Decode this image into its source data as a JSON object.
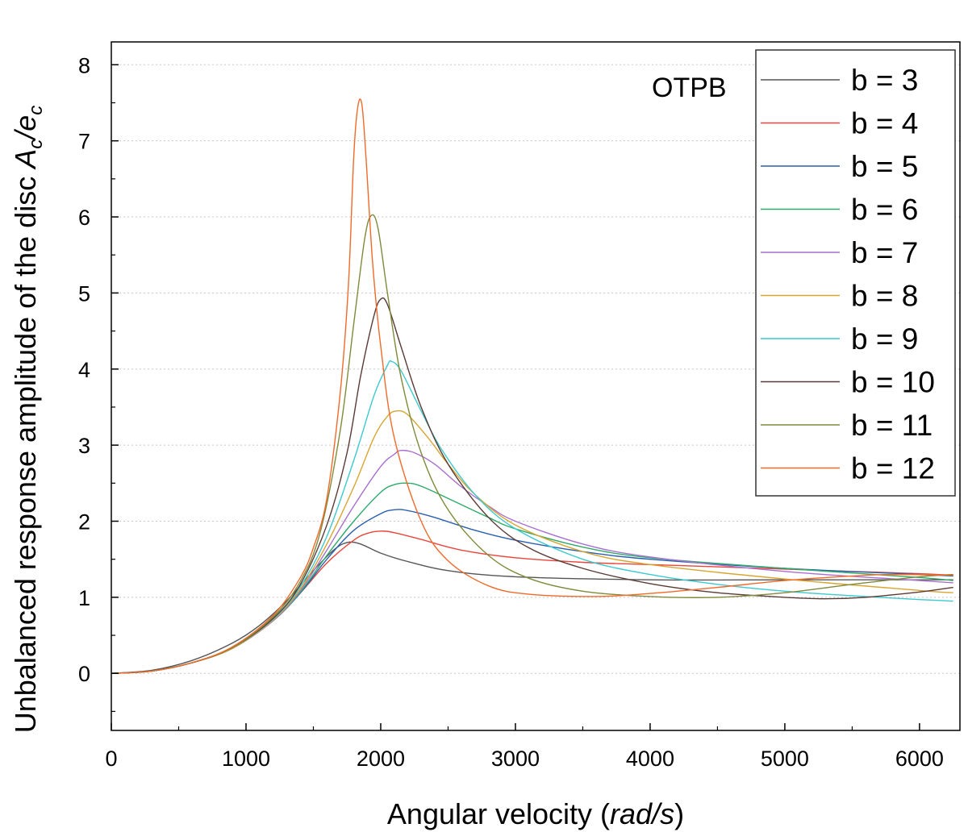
{
  "chart_data": {
    "type": "line",
    "annotation": "OTPB",
    "xlabel_main": "Angular velocity (",
    "xlabel_unit": "rad/s",
    "xlabel_close": ")",
    "ylabel_main": "Unbalanced response amplitude of the disc ",
    "ylabel_A": "A",
    "ylabel_sub1": "c",
    "ylabel_slash": "/e",
    "ylabel_sub2": "c",
    "xlim": [
      0,
      6300
    ],
    "ylim": [
      -0.75,
      8.3
    ],
    "x_ticks": [
      0,
      1000,
      2000,
      3000,
      4000,
      5000,
      6000
    ],
    "x_tick_labels": [
      "0",
      "1000",
      "2000",
      "3000",
      "4000",
      "5000",
      "6000"
    ],
    "y_ticks": [
      0,
      1,
      2,
      3,
      4,
      5,
      6,
      7,
      8
    ],
    "y_tick_labels": [
      "0",
      "1",
      "2",
      "3",
      "4",
      "5",
      "6",
      "7",
      "8"
    ],
    "grid": "horizontal-dotted",
    "legend_position": "top-right",
    "series": [
      {
        "name": "b = 3",
        "color": "#555555",
        "points": [
          [
            0,
            0
          ],
          [
            300,
            0.04
          ],
          [
            600,
            0.17
          ],
          [
            900,
            0.4
          ],
          [
            1100,
            0.63
          ],
          [
            1300,
            0.95
          ],
          [
            1500,
            1.35
          ],
          [
            1650,
            1.62
          ],
          [
            1750,
            1.72
          ],
          [
            1850,
            1.7
          ],
          [
            2000,
            1.58
          ],
          [
            2200,
            1.47
          ],
          [
            2500,
            1.35
          ],
          [
            3000,
            1.27
          ],
          [
            4000,
            1.23
          ],
          [
            5000,
            1.23
          ],
          [
            6000,
            1.23
          ],
          [
            6250,
            1.23
          ]
        ]
      },
      {
        "name": "b = 4",
        "color": "#e8463b",
        "points": [
          [
            0,
            0
          ],
          [
            300,
            0.03
          ],
          [
            600,
            0.14
          ],
          [
            900,
            0.34
          ],
          [
            1200,
            0.7
          ],
          [
            1400,
            1.05
          ],
          [
            1600,
            1.45
          ],
          [
            1800,
            1.75
          ],
          [
            1900,
            1.84
          ],
          [
            2000,
            1.87
          ],
          [
            2100,
            1.85
          ],
          [
            2300,
            1.76
          ],
          [
            2600,
            1.62
          ],
          [
            3000,
            1.52
          ],
          [
            3500,
            1.46
          ],
          [
            4000,
            1.43
          ],
          [
            5000,
            1.37
          ],
          [
            5500,
            1.34
          ],
          [
            6000,
            1.31
          ],
          [
            6250,
            1.29
          ]
        ]
      },
      {
        "name": "b = 5",
        "color": "#2b5fae",
        "points": [
          [
            0,
            0
          ],
          [
            300,
            0.03
          ],
          [
            600,
            0.14
          ],
          [
            900,
            0.33
          ],
          [
            1200,
            0.69
          ],
          [
            1400,
            1.05
          ],
          [
            1600,
            1.5
          ],
          [
            1800,
            1.88
          ],
          [
            2000,
            2.1
          ],
          [
            2100,
            2.15
          ],
          [
            2200,
            2.14
          ],
          [
            2400,
            2.05
          ],
          [
            2700,
            1.88
          ],
          [
            3000,
            1.75
          ],
          [
            3500,
            1.6
          ],
          [
            4000,
            1.5
          ],
          [
            5000,
            1.38
          ],
          [
            6000,
            1.3
          ],
          [
            6250,
            1.28
          ]
        ]
      },
      {
        "name": "b = 6",
        "color": "#2eaa6a",
        "points": [
          [
            0,
            0
          ],
          [
            300,
            0.03
          ],
          [
            600,
            0.14
          ],
          [
            900,
            0.33
          ],
          [
            1200,
            0.69
          ],
          [
            1400,
            1.06
          ],
          [
            1600,
            1.55
          ],
          [
            1800,
            2.0
          ],
          [
            2000,
            2.38
          ],
          [
            2100,
            2.48
          ],
          [
            2200,
            2.5
          ],
          [
            2300,
            2.46
          ],
          [
            2500,
            2.3
          ],
          [
            2800,
            2.05
          ],
          [
            3000,
            1.9
          ],
          [
            3500,
            1.66
          ],
          [
            4000,
            1.52
          ],
          [
            5000,
            1.38
          ],
          [
            6000,
            1.26
          ],
          [
            6250,
            1.22
          ]
        ]
      },
      {
        "name": "b = 7",
        "color": "#a96fcf",
        "points": [
          [
            0,
            0
          ],
          [
            300,
            0.03
          ],
          [
            600,
            0.14
          ],
          [
            900,
            0.33
          ],
          [
            1200,
            0.69
          ],
          [
            1400,
            1.08
          ],
          [
            1600,
            1.62
          ],
          [
            1800,
            2.2
          ],
          [
            2000,
            2.72
          ],
          [
            2100,
            2.88
          ],
          [
            2150,
            2.93
          ],
          [
            2250,
            2.9
          ],
          [
            2400,
            2.75
          ],
          [
            2600,
            2.45
          ],
          [
            2800,
            2.2
          ],
          [
            3000,
            2.0
          ],
          [
            3500,
            1.7
          ],
          [
            4000,
            1.53
          ],
          [
            5000,
            1.34
          ],
          [
            6000,
            1.22
          ],
          [
            6250,
            1.19
          ]
        ]
      },
      {
        "name": "b = 8",
        "color": "#d9a531",
        "points": [
          [
            0,
            0
          ],
          [
            300,
            0.03
          ],
          [
            600,
            0.14
          ],
          [
            900,
            0.33
          ],
          [
            1200,
            0.7
          ],
          [
            1400,
            1.1
          ],
          [
            1600,
            1.7
          ],
          [
            1800,
            2.45
          ],
          [
            1950,
            3.1
          ],
          [
            2050,
            3.38
          ],
          [
            2120,
            3.45
          ],
          [
            2200,
            3.4
          ],
          [
            2350,
            3.1
          ],
          [
            2500,
            2.75
          ],
          [
            2700,
            2.35
          ],
          [
            3000,
            1.95
          ],
          [
            3500,
            1.6
          ],
          [
            4000,
            1.43
          ],
          [
            5000,
            1.24
          ],
          [
            6000,
            1.09
          ],
          [
            6250,
            1.06
          ]
        ]
      },
      {
        "name": "b = 9",
        "color": "#3cc9cf",
        "points": [
          [
            0,
            0
          ],
          [
            300,
            0.03
          ],
          [
            600,
            0.14
          ],
          [
            900,
            0.34
          ],
          [
            1200,
            0.71
          ],
          [
            1400,
            1.13
          ],
          [
            1600,
            1.8
          ],
          [
            1800,
            2.8
          ],
          [
            1950,
            3.65
          ],
          [
            2050,
            4.05
          ],
          [
            2080,
            4.1
          ],
          [
            2150,
            3.98
          ],
          [
            2300,
            3.45
          ],
          [
            2450,
            2.95
          ],
          [
            2700,
            2.35
          ],
          [
            3000,
            1.9
          ],
          [
            3500,
            1.5
          ],
          [
            4000,
            1.3
          ],
          [
            4500,
            1.17
          ],
          [
            5000,
            1.08
          ],
          [
            5500,
            1.02
          ],
          [
            6000,
            0.97
          ],
          [
            6250,
            0.95
          ]
        ]
      },
      {
        "name": "b = 10",
        "color": "#5a3a36",
        "points": [
          [
            0,
            0
          ],
          [
            300,
            0.03
          ],
          [
            600,
            0.14
          ],
          [
            900,
            0.34
          ],
          [
            1200,
            0.72
          ],
          [
            1400,
            1.16
          ],
          [
            1600,
            1.95
          ],
          [
            1750,
            2.9
          ],
          [
            1850,
            3.9
          ],
          [
            1950,
            4.7
          ],
          [
            2000,
            4.92
          ],
          [
            2050,
            4.85
          ],
          [
            2150,
            4.3
          ],
          [
            2300,
            3.5
          ],
          [
            2500,
            2.75
          ],
          [
            2800,
            2.05
          ],
          [
            3100,
            1.65
          ],
          [
            3500,
            1.38
          ],
          [
            4000,
            1.18
          ],
          [
            4500,
            1.06
          ],
          [
            5000,
            1.0
          ],
          [
            5300,
            0.98
          ],
          [
            5600,
            1.0
          ],
          [
            6000,
            1.07
          ],
          [
            6250,
            1.13
          ]
        ]
      },
      {
        "name": "b = 11",
        "color": "#7f8a3a",
        "points": [
          [
            0,
            0
          ],
          [
            300,
            0.03
          ],
          [
            600,
            0.14
          ],
          [
            900,
            0.34
          ],
          [
            1200,
            0.74
          ],
          [
            1400,
            1.2
          ],
          [
            1550,
            1.85
          ],
          [
            1700,
            3.2
          ],
          [
            1800,
            4.6
          ],
          [
            1880,
            5.7
          ],
          [
            1930,
            6.02
          ],
          [
            1980,
            5.85
          ],
          [
            2050,
            5.0
          ],
          [
            2150,
            3.9
          ],
          [
            2300,
            2.9
          ],
          [
            2500,
            2.15
          ],
          [
            2800,
            1.55
          ],
          [
            3100,
            1.25
          ],
          [
            3500,
            1.08
          ],
          [
            4000,
            1.01
          ],
          [
            4500,
            1.0
          ],
          [
            5000,
            1.06
          ],
          [
            5500,
            1.17
          ],
          [
            6000,
            1.27
          ],
          [
            6250,
            1.3
          ]
        ]
      },
      {
        "name": "b = 12",
        "color": "#f06a2a",
        "points": [
          [
            0,
            0
          ],
          [
            300,
            0.03
          ],
          [
            600,
            0.14
          ],
          [
            900,
            0.35
          ],
          [
            1200,
            0.76
          ],
          [
            1400,
            1.25
          ],
          [
            1500,
            1.65
          ],
          [
            1600,
            2.3
          ],
          [
            1700,
            3.7
          ],
          [
            1760,
            5.1
          ],
          [
            1800,
            6.8
          ],
          [
            1830,
            7.45
          ],
          [
            1860,
            7.48
          ],
          [
            1890,
            6.8
          ],
          [
            1940,
            5.4
          ],
          [
            2000,
            4.3
          ],
          [
            2100,
            3.1
          ],
          [
            2300,
            2.0
          ],
          [
            2500,
            1.48
          ],
          [
            2800,
            1.15
          ],
          [
            3100,
            1.04
          ],
          [
            3600,
            1.01
          ],
          [
            4000,
            1.05
          ],
          [
            4500,
            1.13
          ],
          [
            5000,
            1.22
          ],
          [
            5500,
            1.28
          ],
          [
            5800,
            1.3
          ],
          [
            6250,
            1.29
          ]
        ]
      }
    ]
  }
}
